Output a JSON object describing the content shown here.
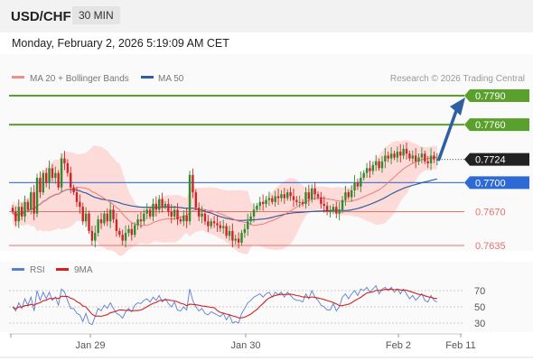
{
  "header": {
    "symbol": "USD/CHF",
    "timeframe": "30 MIN"
  },
  "datetime": "Monday, February 2, 2026 5:19:09 AM CET",
  "watermark": "Research © 2026 Trading Central",
  "colors": {
    "resistance": "#5aa02c",
    "support": "#e4746e",
    "ma50": "#2e5fa3",
    "ma20": "#ef7a74",
    "bollinger": "#fdd5d2",
    "rsi": "#5b7fd1",
    "rsi_ma": "#d62020",
    "current": "#222222",
    "pivot": "#2e6ad6"
  },
  "chart_data": [
    {
      "type": "candlestick",
      "legend": [
        {
          "name": "MA 20 + Bollinger Bands",
          "color": "#f08f89"
        },
        {
          "name": "MA 50",
          "color": "#2e5fa3"
        }
      ],
      "ylim": [
        0.762,
        0.78
      ],
      "x_ticks": [
        "Jan 29",
        "Jan 30",
        "Feb 2",
        "Feb 11"
      ],
      "levels": [
        {
          "value": "0.7790",
          "kind": "resistance"
        },
        {
          "value": "0.7760",
          "kind": "resistance"
        },
        {
          "value": "0.7724",
          "kind": "current"
        },
        {
          "value": "0.7700",
          "kind": "pivot"
        },
        {
          "value": "0.7670",
          "kind": "support"
        },
        {
          "value": "0.7635",
          "kind": "support"
        }
      ],
      "target_arrow": {
        "from": 0.7724,
        "to": 0.779
      },
      "closes": [
        0.767,
        0.766,
        0.7675,
        0.7665,
        0.768,
        0.7672,
        0.769,
        0.7668,
        0.7705,
        0.769,
        0.771,
        0.77,
        0.7715,
        0.7705,
        0.771,
        0.7695,
        0.7725,
        0.772,
        0.771,
        0.7695,
        0.769,
        0.768,
        0.7675,
        0.766,
        0.7668,
        0.765,
        0.764,
        0.7648,
        0.7662,
        0.7658,
        0.7668,
        0.766,
        0.7672,
        0.7662,
        0.765,
        0.7646,
        0.764,
        0.7648,
        0.7652,
        0.7646,
        0.7656,
        0.7662,
        0.766,
        0.7668,
        0.7672,
        0.7665,
        0.7678,
        0.7672,
        0.7683,
        0.7675,
        0.7678,
        0.767,
        0.7665,
        0.7672,
        0.7662,
        0.766,
        0.7666,
        0.766,
        0.7708,
        0.769,
        0.7674,
        0.7665,
        0.7668,
        0.766,
        0.7655,
        0.766,
        0.7658,
        0.7656,
        0.7653,
        0.7655,
        0.7645,
        0.765,
        0.764,
        0.7642,
        0.7638,
        0.7648,
        0.7652,
        0.766,
        0.7665,
        0.7672,
        0.7676,
        0.768,
        0.7678,
        0.7682,
        0.7684,
        0.768,
        0.7686,
        0.7684,
        0.7688,
        0.7684,
        0.769,
        0.7686,
        0.7682,
        0.768,
        0.768,
        0.7678,
        0.769,
        0.7683,
        0.7694,
        0.7688,
        0.7685,
        0.7678,
        0.7676,
        0.767,
        0.767,
        0.7675,
        0.7668,
        0.7672,
        0.7682,
        0.769,
        0.7685,
        0.7692,
        0.77,
        0.7696,
        0.7705,
        0.771,
        0.7715,
        0.7712,
        0.7718,
        0.7722,
        0.7715,
        0.7722,
        0.7728,
        0.7725,
        0.773,
        0.7726,
        0.7732,
        0.7728,
        0.7735,
        0.773,
        0.7725,
        0.7728,
        0.7722,
        0.7726,
        0.773,
        0.7722,
        0.772,
        0.7728,
        0.7724,
        0.7724
      ]
    },
    {
      "type": "line",
      "legend": [
        {
          "name": "RSI",
          "color": "#5b7fd1"
        },
        {
          "name": "9MA",
          "color": "#d62020"
        }
      ],
      "ylim": [
        20,
        80
      ],
      "y_ticks": [
        "70",
        "50",
        "30"
      ],
      "rsi": [
        50,
        45,
        55,
        48,
        60,
        52,
        62,
        45,
        70,
        58,
        68,
        60,
        68,
        58,
        62,
        52,
        72,
        68,
        58,
        48,
        48,
        42,
        40,
        32,
        42,
        30,
        28,
        38,
        48,
        45,
        52,
        48,
        55,
        48,
        42,
        40,
        36,
        44,
        48,
        44,
        52,
        55,
        54,
        58,
        60,
        56,
        62,
        58,
        64,
        56,
        60,
        54,
        50,
        56,
        46,
        45,
        50,
        46,
        72,
        58,
        50,
        45,
        48,
        42,
        40,
        44,
        42,
        40,
        38,
        42,
        34,
        40,
        30,
        32,
        30,
        42,
        48,
        55,
        58,
        62,
        64,
        66,
        62,
        66,
        68,
        62,
        68,
        65,
        68,
        62,
        68,
        64,
        60,
        58,
        58,
        56,
        66,
        60,
        70,
        62,
        58,
        52,
        50,
        46,
        46,
        54,
        45,
        50,
        62,
        66,
        60,
        66,
        70,
        64,
        72,
        70,
        74,
        68,
        72,
        76,
        66,
        72,
        74,
        70,
        74,
        68,
        72,
        66,
        72,
        66,
        60,
        64,
        58,
        62,
        66,
        58,
        56,
        64,
        58,
        56
      ]
    }
  ]
}
